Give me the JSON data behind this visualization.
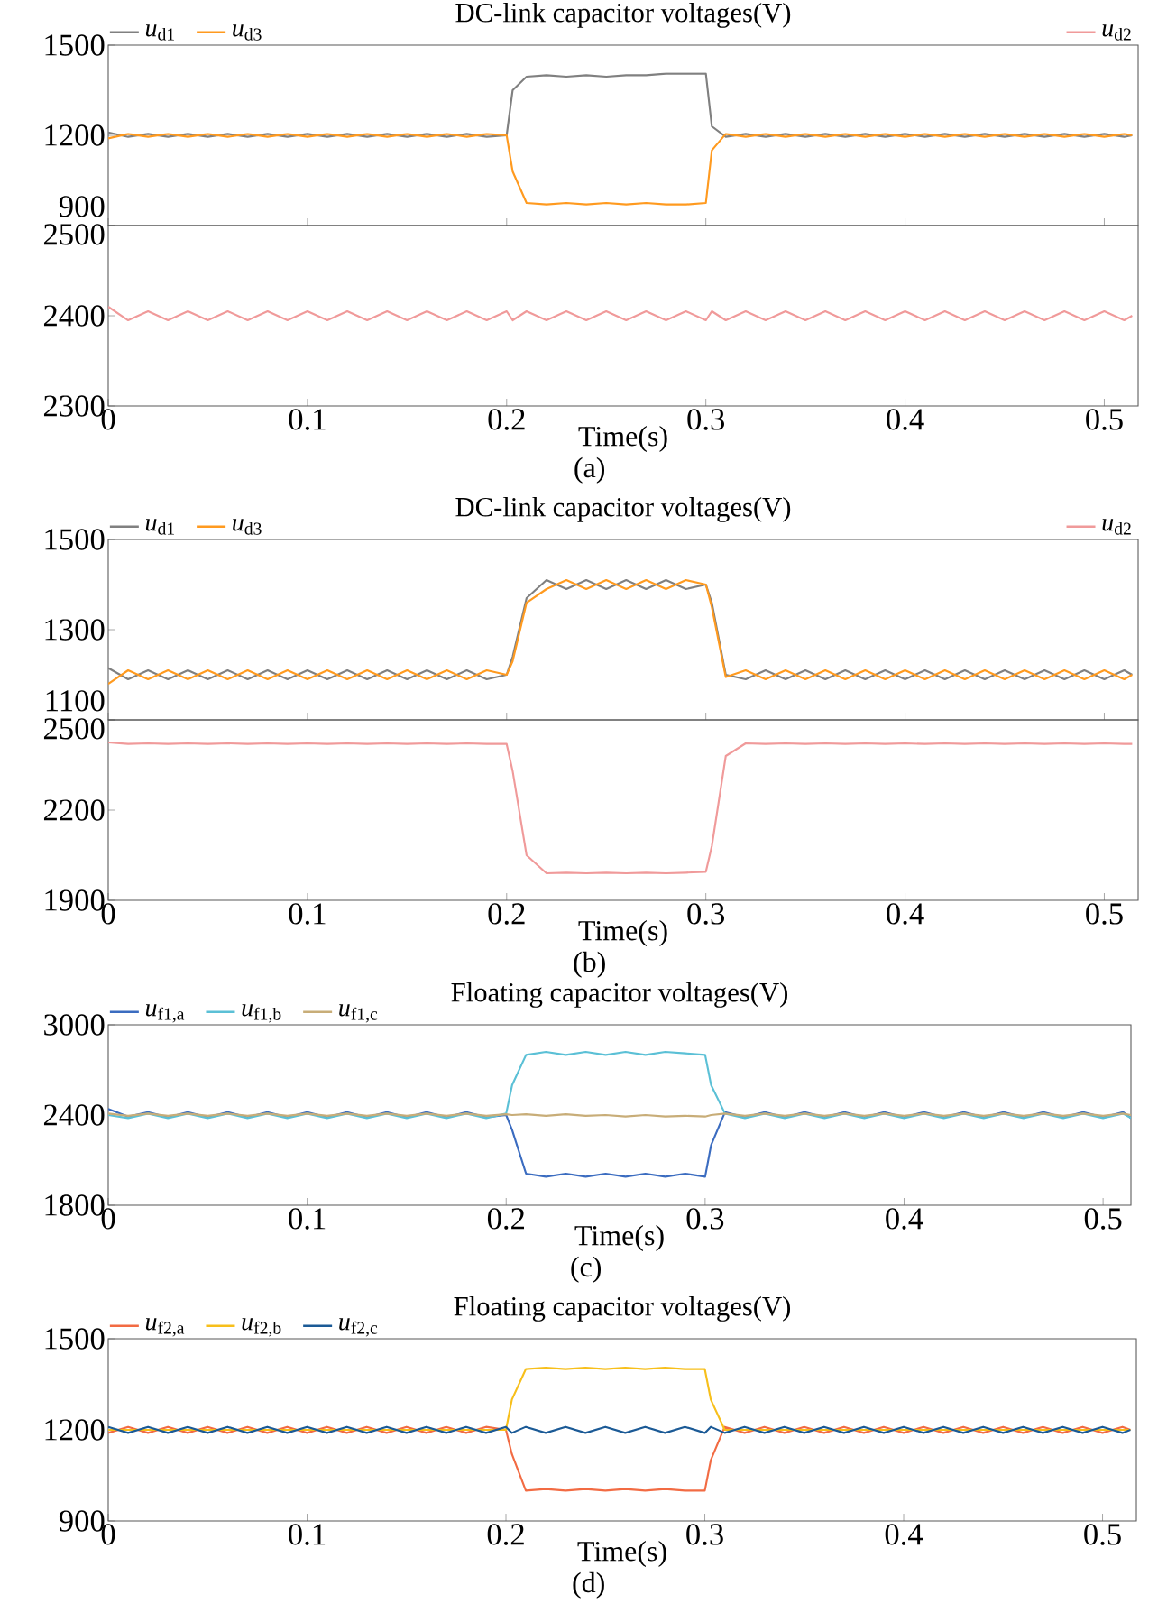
{
  "chart_data": [
    {
      "type": "line",
      "title": "DC-link capacitor voltages(V)",
      "tick_labels": "y",
      "legend": "top left",
      "xlim": [
        0,
        0.517
      ],
      "xticks": [
        0,
        0.1,
        0.2,
        0.3,
        0.4,
        0.5
      ],
      "ylim": [
        900,
        1500
      ],
      "yticks": [
        900,
        1200,
        1500
      ],
      "x": [
        0,
        0.01,
        0.02,
        0.03,
        0.04,
        0.05,
        0.06,
        0.07,
        0.08,
        0.09,
        0.1,
        0.11,
        0.12,
        0.13,
        0.14,
        0.15,
        0.16,
        0.17,
        0.18,
        0.19,
        0.2,
        0.203,
        0.21,
        0.22,
        0.23,
        0.24,
        0.25,
        0.26,
        0.27,
        0.28,
        0.29,
        0.3,
        0.303,
        0.31,
        0.32,
        0.33,
        0.34,
        0.35,
        0.36,
        0.37,
        0.38,
        0.39,
        0.4,
        0.41,
        0.42,
        0.43,
        0.44,
        0.45,
        0.46,
        0.47,
        0.48,
        0.49,
        0.5,
        0.51,
        0.514
      ],
      "series": [
        {
          "name": "*u*$_{d1}$",
          "color": "#808080",
          "values": [
            1210,
            1195,
            1205,
            1195,
            1205,
            1195,
            1205,
            1195,
            1205,
            1195,
            1205,
            1195,
            1205,
            1195,
            1205,
            1195,
            1205,
            1195,
            1205,
            1195,
            1200,
            1350,
            1395,
            1400,
            1395,
            1400,
            1395,
            1400,
            1400,
            1405,
            1405,
            1405,
            1230,
            1195,
            1205,
            1195,
            1205,
            1195,
            1205,
            1195,
            1205,
            1195,
            1205,
            1195,
            1205,
            1195,
            1205,
            1195,
            1205,
            1195,
            1205,
            1195,
            1205,
            1195,
            1200
          ]
        },
        {
          "name": "*u*$_{d3}$",
          "color": "#ff9a1f",
          "values": [
            1190,
            1205,
            1195,
            1205,
            1195,
            1205,
            1195,
            1205,
            1195,
            1205,
            1195,
            1205,
            1195,
            1205,
            1195,
            1205,
            1195,
            1205,
            1195,
            1205,
            1200,
            1080,
            975,
            970,
            975,
            970,
            975,
            970,
            975,
            970,
            970,
            975,
            1150,
            1205,
            1195,
            1205,
            1195,
            1205,
            1195,
            1205,
            1195,
            1205,
            1195,
            1205,
            1195,
            1205,
            1195,
            1205,
            1195,
            1205,
            1195,
            1205,
            1195,
            1205,
            1200
          ]
        }
      ]
    },
    {
      "type": "line",
      "xlabel": "Time(s)",
      "legend": "top right",
      "annotations": [
        "(a)"
      ],
      "xlim": [
        0,
        0.517
      ],
      "xticks": [
        0,
        0.1,
        0.2,
        0.3,
        0.4,
        0.5
      ],
      "ylim": [
        2300,
        2500
      ],
      "yticks": [
        2300,
        2400,
        2500
      ],
      "x": [
        0,
        0.01,
        0.02,
        0.03,
        0.04,
        0.05,
        0.06,
        0.07,
        0.08,
        0.09,
        0.1,
        0.11,
        0.12,
        0.13,
        0.14,
        0.15,
        0.16,
        0.17,
        0.18,
        0.19,
        0.2,
        0.203,
        0.21,
        0.22,
        0.23,
        0.24,
        0.25,
        0.26,
        0.27,
        0.28,
        0.29,
        0.3,
        0.303,
        0.31,
        0.32,
        0.33,
        0.34,
        0.35,
        0.36,
        0.37,
        0.38,
        0.39,
        0.4,
        0.41,
        0.42,
        0.43,
        0.44,
        0.45,
        0.46,
        0.47,
        0.48,
        0.49,
        0.5,
        0.51,
        0.514
      ],
      "series": [
        {
          "name": "*u*$_{d2}$",
          "color": "#f09a9a",
          "values": [
            2410,
            2395,
            2405,
            2395,
            2405,
            2395,
            2405,
            2395,
            2405,
            2395,
            2405,
            2395,
            2405,
            2395,
            2405,
            2395,
            2405,
            2395,
            2405,
            2395,
            2405,
            2395,
            2405,
            2395,
            2405,
            2395,
            2405,
            2395,
            2405,
            2395,
            2405,
            2395,
            2405,
            2395,
            2405,
            2395,
            2405,
            2395,
            2405,
            2395,
            2405,
            2395,
            2405,
            2395,
            2405,
            2395,
            2405,
            2395,
            2405,
            2395,
            2405,
            2395,
            2405,
            2395,
            2400
          ]
        }
      ]
    },
    {
      "type": "line",
      "title": "DC-link capacitor voltages(V)",
      "tick_labels": "y",
      "legend": "top left",
      "xlim": [
        0,
        0.517
      ],
      "xticks": [
        0,
        0.1,
        0.2,
        0.3,
        0.4,
        0.5
      ],
      "ylim": [
        1100,
        1500
      ],
      "yticks": [
        1100,
        1300,
        1500
      ],
      "x": [
        0,
        0.01,
        0.02,
        0.03,
        0.04,
        0.05,
        0.06,
        0.07,
        0.08,
        0.09,
        0.1,
        0.11,
        0.12,
        0.13,
        0.14,
        0.15,
        0.16,
        0.17,
        0.18,
        0.19,
        0.2,
        0.203,
        0.21,
        0.22,
        0.23,
        0.24,
        0.25,
        0.26,
        0.27,
        0.28,
        0.29,
        0.3,
        0.303,
        0.31,
        0.32,
        0.33,
        0.34,
        0.35,
        0.36,
        0.37,
        0.38,
        0.39,
        0.4,
        0.41,
        0.42,
        0.43,
        0.44,
        0.45,
        0.46,
        0.47,
        0.48,
        0.49,
        0.5,
        0.51,
        0.514
      ],
      "series": [
        {
          "name": "*u*$_{d1}$",
          "color": "#808080",
          "values": [
            1215,
            1190,
            1210,
            1190,
            1210,
            1190,
            1210,
            1190,
            1210,
            1190,
            1210,
            1190,
            1210,
            1190,
            1210,
            1190,
            1210,
            1190,
            1210,
            1190,
            1200,
            1240,
            1370,
            1410,
            1390,
            1410,
            1390,
            1410,
            1390,
            1410,
            1390,
            1400,
            1360,
            1200,
            1190,
            1210,
            1190,
            1210,
            1190,
            1210,
            1190,
            1210,
            1190,
            1210,
            1190,
            1210,
            1190,
            1210,
            1190,
            1210,
            1190,
            1210,
            1190,
            1210,
            1200
          ]
        },
        {
          "name": "*u*$_{d3}$",
          "color": "#ff9a1f",
          "values": [
            1180,
            1210,
            1190,
            1210,
            1190,
            1210,
            1190,
            1210,
            1190,
            1210,
            1190,
            1210,
            1190,
            1210,
            1190,
            1210,
            1190,
            1210,
            1190,
            1210,
            1200,
            1230,
            1360,
            1390,
            1410,
            1390,
            1410,
            1390,
            1410,
            1390,
            1410,
            1400,
            1350,
            1195,
            1210,
            1190,
            1210,
            1190,
            1210,
            1190,
            1210,
            1190,
            1210,
            1190,
            1210,
            1190,
            1210,
            1190,
            1210,
            1190,
            1210,
            1190,
            1210,
            1190,
            1200
          ]
        }
      ]
    },
    {
      "type": "line",
      "xlabel": "Time(s)",
      "legend": "top right",
      "annotations": [
        "(b)"
      ],
      "xlim": [
        0,
        0.517
      ],
      "xticks": [
        0,
        0.1,
        0.2,
        0.3,
        0.4,
        0.5
      ],
      "ylim": [
        1900,
        2500
      ],
      "yticks": [
        1900,
        2200,
        2500
      ],
      "x": [
        0,
        0.01,
        0.02,
        0.03,
        0.04,
        0.05,
        0.06,
        0.07,
        0.08,
        0.09,
        0.1,
        0.11,
        0.12,
        0.13,
        0.14,
        0.15,
        0.16,
        0.17,
        0.18,
        0.19,
        0.2,
        0.203,
        0.21,
        0.22,
        0.23,
        0.24,
        0.25,
        0.26,
        0.27,
        0.28,
        0.29,
        0.3,
        0.303,
        0.31,
        0.32,
        0.33,
        0.34,
        0.35,
        0.36,
        0.37,
        0.38,
        0.39,
        0.4,
        0.41,
        0.42,
        0.43,
        0.44,
        0.45,
        0.46,
        0.47,
        0.48,
        0.49,
        0.5,
        0.51,
        0.514
      ],
      "series": [
        {
          "name": "*u*$_{d2}$",
          "color": "#f09a9a",
          "values": [
            2425,
            2420,
            2422,
            2420,
            2422,
            2420,
            2422,
            2420,
            2422,
            2420,
            2422,
            2420,
            2422,
            2420,
            2422,
            2420,
            2422,
            2420,
            2422,
            2420,
            2420,
            2330,
            2050,
            1990,
            1992,
            1990,
            1992,
            1990,
            1992,
            1990,
            1992,
            1995,
            2080,
            2380,
            2422,
            2420,
            2422,
            2420,
            2422,
            2420,
            2422,
            2420,
            2422,
            2420,
            2422,
            2420,
            2422,
            2420,
            2422,
            2420,
            2422,
            2420,
            2422,
            2420,
            2420
          ]
        }
      ]
    },
    {
      "type": "line",
      "title": "Floating capacitor voltages(V)",
      "xlabel": "Time(s)",
      "legend": "top left",
      "annotations": [
        "(c)"
      ],
      "xlim": [
        0,
        0.514
      ],
      "xticks": [
        0,
        0.1,
        0.2,
        0.3,
        0.4,
        0.5
      ],
      "ylim": [
        1800,
        3000
      ],
      "yticks": [
        1800,
        2400,
        3000
      ],
      "x": [
        0,
        0.01,
        0.02,
        0.03,
        0.04,
        0.05,
        0.06,
        0.07,
        0.08,
        0.09,
        0.1,
        0.11,
        0.12,
        0.13,
        0.14,
        0.15,
        0.16,
        0.17,
        0.18,
        0.19,
        0.2,
        0.203,
        0.21,
        0.22,
        0.23,
        0.24,
        0.25,
        0.26,
        0.27,
        0.28,
        0.29,
        0.3,
        0.303,
        0.31,
        0.32,
        0.33,
        0.34,
        0.35,
        0.36,
        0.37,
        0.38,
        0.39,
        0.4,
        0.41,
        0.42,
        0.43,
        0.44,
        0.45,
        0.46,
        0.47,
        0.48,
        0.49,
        0.5,
        0.51,
        0.514
      ],
      "series": [
        {
          "name": "*u*$_{f1,a}$",
          "color": "#3b6cc0",
          "values": [
            2440,
            2390,
            2420,
            2385,
            2420,
            2385,
            2420,
            2385,
            2420,
            2385,
            2420,
            2385,
            2420,
            2385,
            2420,
            2385,
            2420,
            2385,
            2420,
            2385,
            2400,
            2300,
            2010,
            1990,
            2010,
            1990,
            2010,
            1990,
            2010,
            1990,
            2010,
            1990,
            2200,
            2420,
            2385,
            2420,
            2385,
            2420,
            2385,
            2420,
            2385,
            2420,
            2385,
            2420,
            2385,
            2420,
            2385,
            2420,
            2385,
            2420,
            2385,
            2420,
            2385,
            2420,
            2380
          ]
        },
        {
          "name": "*u*$_{f1,b}$",
          "color": "#5bc0d6",
          "values": [
            2400,
            2380,
            2410,
            2380,
            2410,
            2380,
            2410,
            2380,
            2410,
            2380,
            2410,
            2380,
            2410,
            2380,
            2410,
            2380,
            2410,
            2380,
            2410,
            2380,
            2410,
            2600,
            2800,
            2820,
            2800,
            2820,
            2800,
            2820,
            2800,
            2820,
            2810,
            2800,
            2600,
            2410,
            2380,
            2410,
            2380,
            2410,
            2380,
            2410,
            2380,
            2410,
            2380,
            2410,
            2380,
            2410,
            2380,
            2410,
            2380,
            2410,
            2380,
            2410,
            2380,
            2410,
            2380
          ]
        },
        {
          "name": "*u*$_{f1,c}$",
          "color": "#c8ad78",
          "values": [
            2410,
            2395,
            2410,
            2395,
            2410,
            2395,
            2410,
            2395,
            2410,
            2395,
            2410,
            2395,
            2410,
            2395,
            2410,
            2395,
            2410,
            2395,
            2410,
            2395,
            2405,
            2400,
            2405,
            2395,
            2405,
            2395,
            2400,
            2390,
            2400,
            2390,
            2395,
            2390,
            2400,
            2410,
            2395,
            2410,
            2395,
            2410,
            2395,
            2410,
            2395,
            2410,
            2395,
            2410,
            2395,
            2410,
            2395,
            2410,
            2395,
            2410,
            2395,
            2410,
            2395,
            2410,
            2400
          ]
        }
      ]
    },
    {
      "type": "line",
      "title": "Floating capacitor voltages(V)",
      "xlabel": "Time(s)",
      "legend": "top left",
      "annotations": [
        "(d)"
      ],
      "xlim": [
        0,
        0.517
      ],
      "xticks": [
        0,
        0.1,
        0.2,
        0.3,
        0.4,
        0.5
      ],
      "ylim": [
        900,
        1500
      ],
      "yticks": [
        900,
        1200,
        1500
      ],
      "x": [
        0,
        0.01,
        0.02,
        0.03,
        0.04,
        0.05,
        0.06,
        0.07,
        0.08,
        0.09,
        0.1,
        0.11,
        0.12,
        0.13,
        0.14,
        0.15,
        0.16,
        0.17,
        0.18,
        0.19,
        0.2,
        0.203,
        0.21,
        0.22,
        0.23,
        0.24,
        0.25,
        0.26,
        0.27,
        0.28,
        0.29,
        0.3,
        0.303,
        0.31,
        0.32,
        0.33,
        0.34,
        0.35,
        0.36,
        0.37,
        0.38,
        0.39,
        0.4,
        0.41,
        0.42,
        0.43,
        0.44,
        0.45,
        0.46,
        0.47,
        0.48,
        0.49,
        0.5,
        0.51,
        0.514
      ],
      "series": [
        {
          "name": "*u*$_{f2,a}$",
          "color": "#f26b43",
          "values": [
            1190,
            1210,
            1190,
            1210,
            1190,
            1210,
            1190,
            1210,
            1190,
            1210,
            1190,
            1210,
            1190,
            1210,
            1190,
            1210,
            1190,
            1210,
            1190,
            1210,
            1200,
            1120,
            1000,
            1005,
            1000,
            1005,
            1000,
            1005,
            1000,
            1005,
            1000,
            1000,
            1100,
            1210,
            1190,
            1210,
            1190,
            1210,
            1190,
            1210,
            1190,
            1210,
            1190,
            1210,
            1190,
            1210,
            1190,
            1210,
            1190,
            1210,
            1190,
            1210,
            1190,
            1210,
            1200
          ]
        },
        {
          "name": "*u*$_{f2,b}$",
          "color": "#f7bf1b",
          "values": [
            1200,
            1200,
            1200,
            1200,
            1200,
            1200,
            1200,
            1200,
            1200,
            1200,
            1200,
            1200,
            1200,
            1200,
            1200,
            1200,
            1200,
            1200,
            1200,
            1200,
            1200,
            1300,
            1400,
            1405,
            1400,
            1405,
            1400,
            1405,
            1400,
            1405,
            1400,
            1400,
            1300,
            1200,
            1200,
            1200,
            1200,
            1200,
            1200,
            1200,
            1200,
            1200,
            1200,
            1200,
            1200,
            1200,
            1200,
            1200,
            1200,
            1200,
            1200,
            1200,
            1200,
            1200,
            1200
          ]
        },
        {
          "name": "*u*$_{f2,c}$",
          "color": "#1b5a96",
          "values": [
            1210,
            1190,
            1210,
            1190,
            1210,
            1190,
            1210,
            1190,
            1210,
            1190,
            1210,
            1190,
            1210,
            1190,
            1210,
            1190,
            1210,
            1190,
            1210,
            1190,
            1210,
            1190,
            1210,
            1190,
            1210,
            1190,
            1210,
            1190,
            1210,
            1190,
            1210,
            1190,
            1210,
            1190,
            1210,
            1190,
            1210,
            1190,
            1210,
            1190,
            1210,
            1190,
            1210,
            1190,
            1210,
            1190,
            1210,
            1190,
            1210,
            1190,
            1210,
            1190,
            1210,
            1190,
            1200
          ]
        }
      ]
    }
  ]
}
